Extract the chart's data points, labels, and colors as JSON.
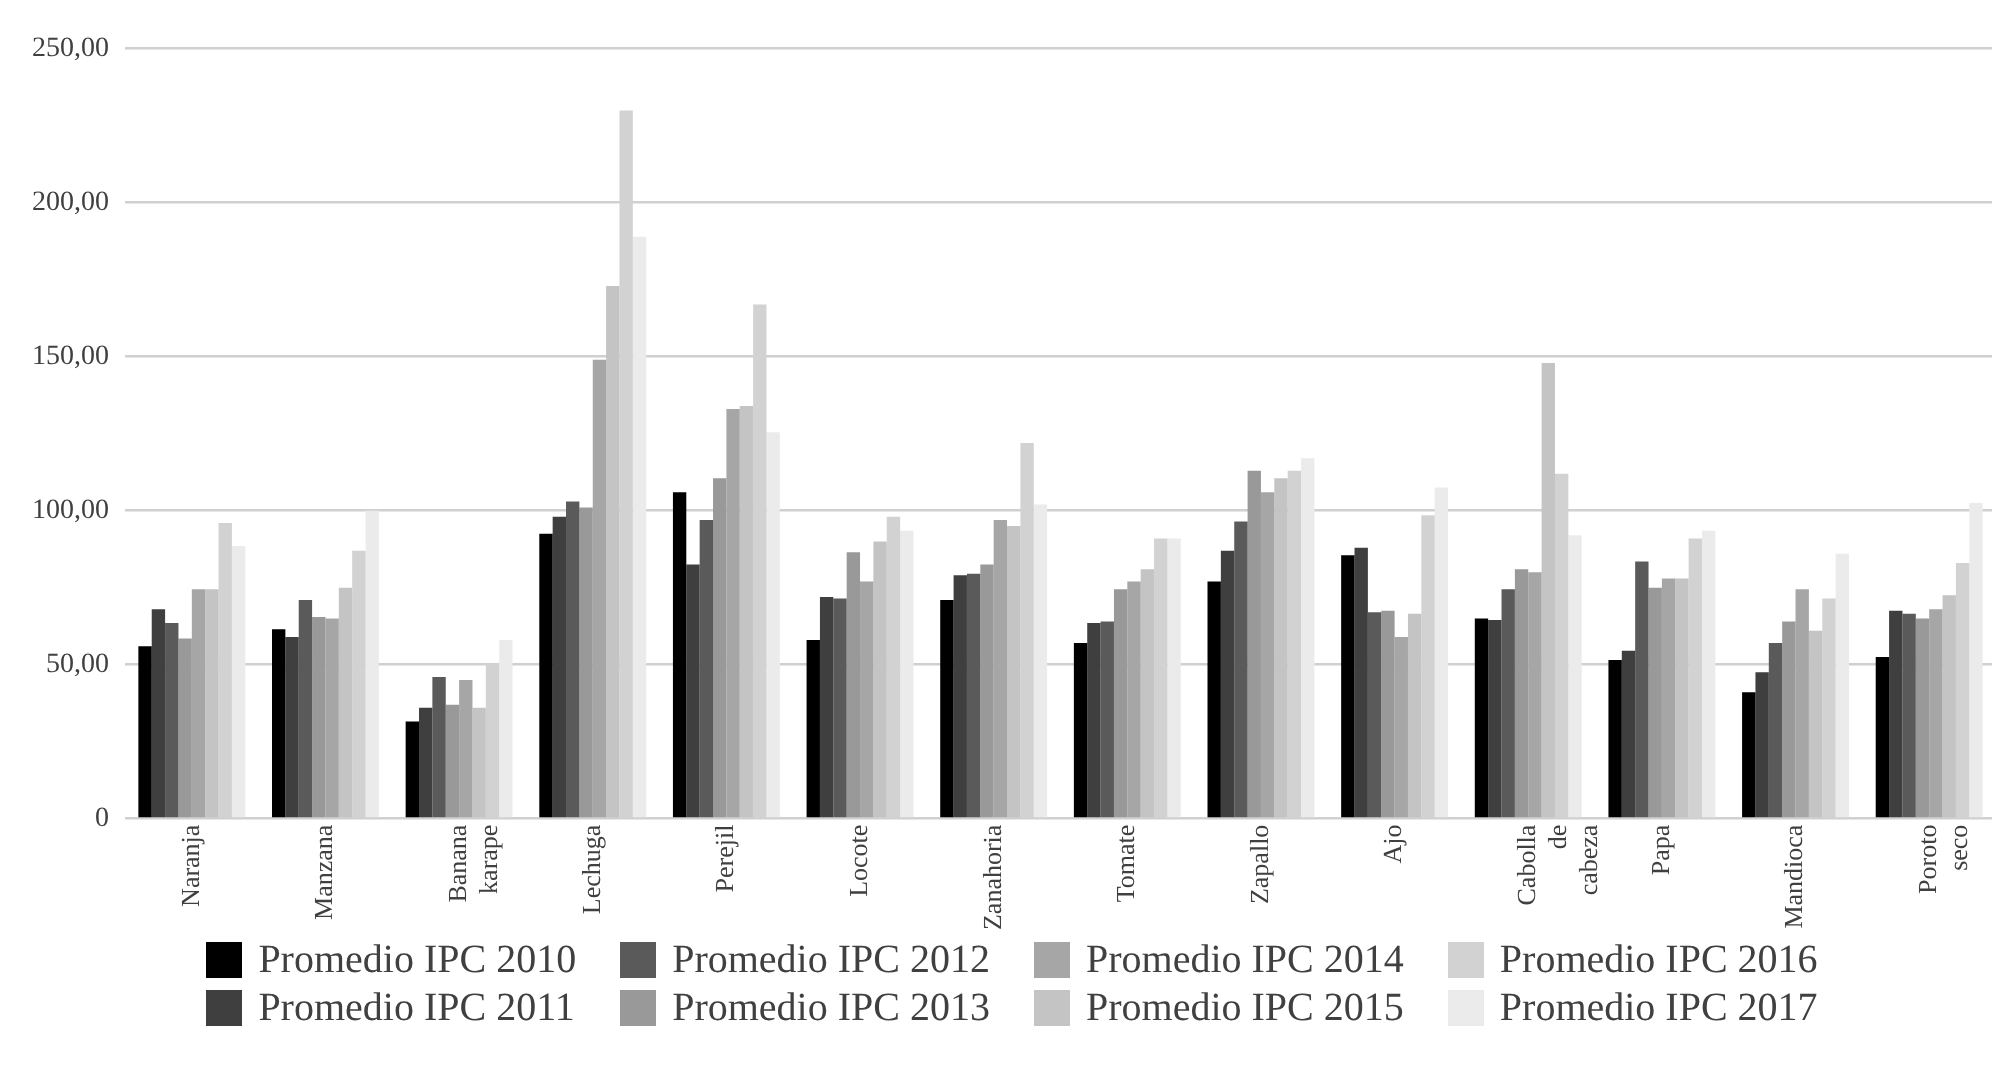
{
  "chart_data": {
    "type": "bar",
    "categories": [
      "Naranja",
      "Manzana",
      "Banana karape",
      "Lechuga",
      "Perejil",
      "Locote",
      "Zanahoria",
      "Tomate",
      "Zapallo",
      "Ajo",
      "Cabolla de cabeza",
      "Papa",
      "Mandioca",
      "Poroto seco"
    ],
    "series": [
      {
        "name": "Promedio IPC 2010",
        "color": "#000000",
        "values": [
          56,
          61.5,
          31.5,
          92.5,
          106,
          58,
          71,
          57,
          77,
          85.5,
          65,
          51.5,
          41,
          52.5
        ]
      },
      {
        "name": "Promedio IPC 2011",
        "color": "#3f3f3f",
        "values": [
          68,
          59,
          36,
          98,
          82.5,
          72,
          79,
          63.5,
          87,
          88,
          64.5,
          54.5,
          47.5,
          67.5
        ]
      },
      {
        "name": "Promedio IPC 2012",
        "color": "#5a5a5a",
        "values": [
          63.5,
          71,
          46,
          103,
          97,
          71.5,
          79.5,
          64,
          96.5,
          67,
          74.5,
          83.5,
          57,
          66.5
        ]
      },
      {
        "name": "Promedio IPC 2013",
        "color": "#999999",
        "values": [
          58.5,
          65.5,
          37,
          101,
          110.5,
          86.5,
          82.5,
          74.5,
          113,
          67.5,
          81,
          75,
          64,
          65
        ]
      },
      {
        "name": "Promedio IPC 2014",
        "color": "#a6a6a6",
        "values": [
          74.5,
          65,
          45,
          149,
          133,
          77,
          97,
          77,
          106,
          59,
          80,
          78,
          74.5,
          68
        ]
      },
      {
        "name": "Promedio IPC 2015",
        "color": "#c4c4c4",
        "values": [
          74.5,
          75,
          36,
          173,
          134,
          90,
          95,
          81,
          110.5,
          66.5,
          148,
          78,
          61,
          72.5
        ]
      },
      {
        "name": "Promedio IPC 2016",
        "color": "#d2d2d2",
        "values": [
          96,
          87,
          50,
          230,
          167,
          98,
          122,
          91,
          113,
          98.5,
          112,
          91,
          71.5,
          83
        ]
      },
      {
        "name": "Promedio IPC 2017",
        "color": "#ebebeb",
        "values": [
          88.5,
          100,
          58,
          189,
          125.5,
          93.5,
          102,
          91,
          117,
          107.5,
          92,
          93.5,
          86,
          102.5
        ]
      }
    ],
    "ylim": [
      0,
      250
    ],
    "yticks": [
      {
        "value": 0,
        "label": "0"
      },
      {
        "value": 50,
        "label": "50,00"
      },
      {
        "value": 100,
        "label": "100,00"
      },
      {
        "value": 150,
        "label": "150,00"
      },
      {
        "value": 200,
        "label": "200,00"
      },
      {
        "value": 250,
        "label": "250,00"
      }
    ],
    "grid": "y",
    "legend": "bottom"
  }
}
